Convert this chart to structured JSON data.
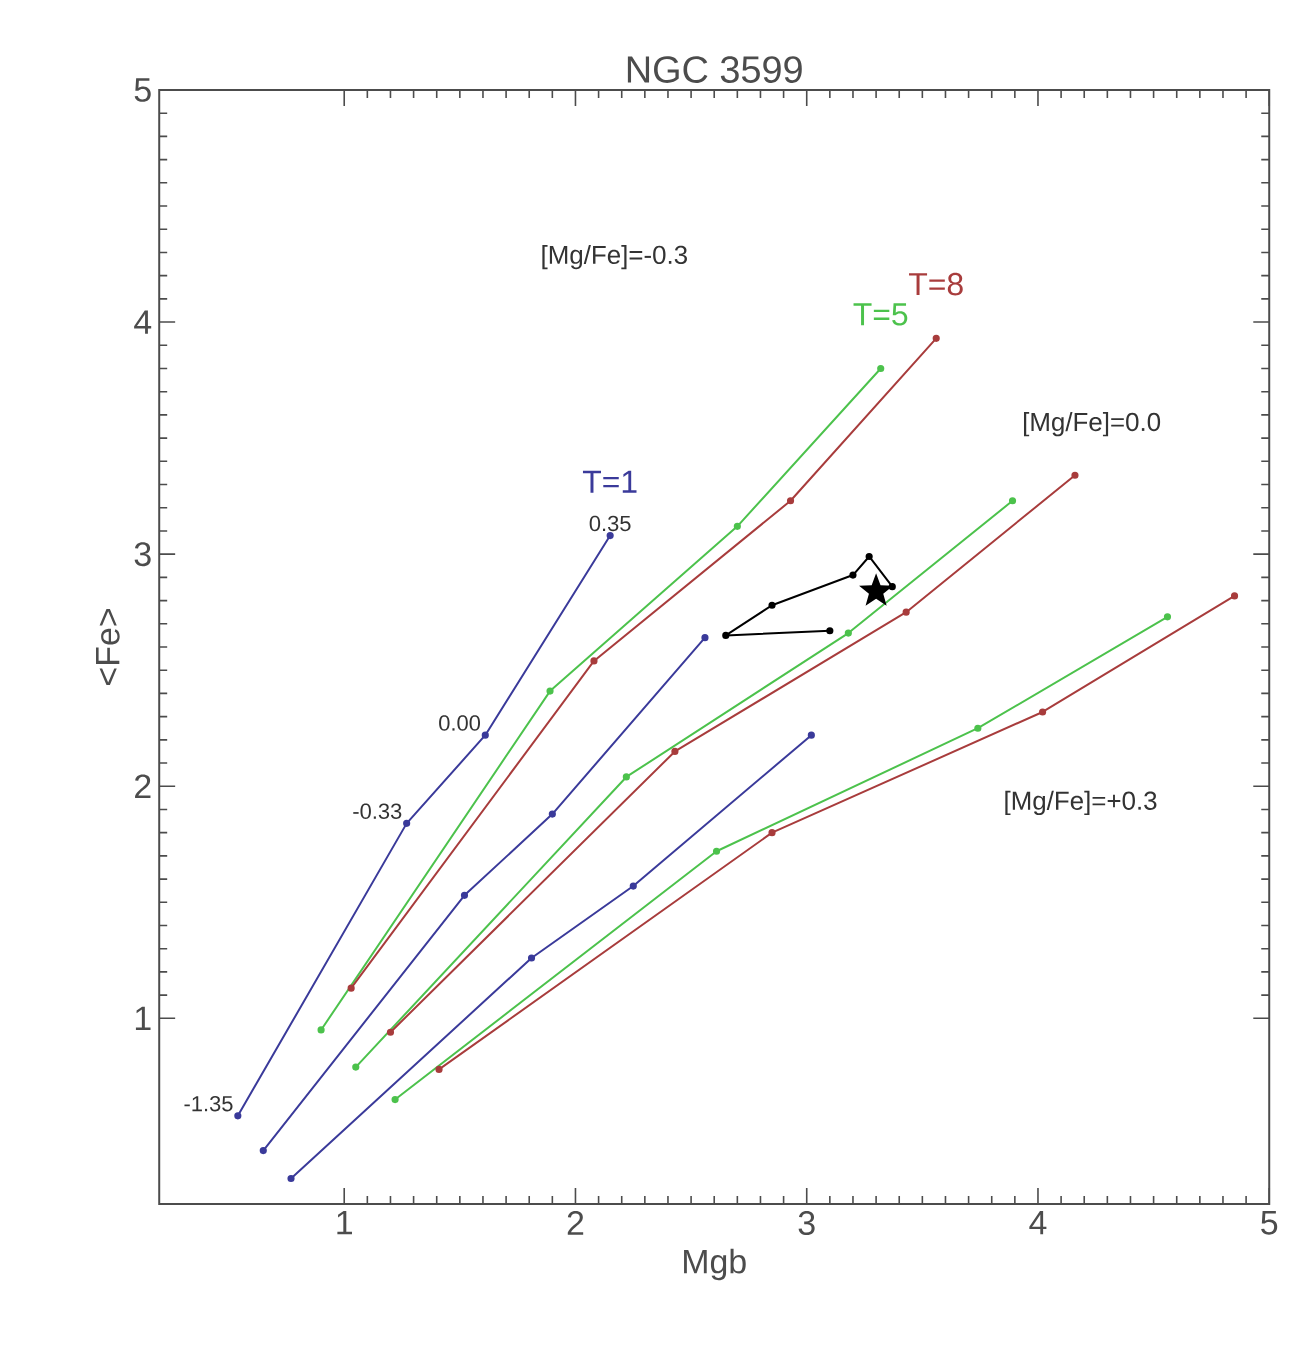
{
  "chart_data": {
    "type": "line",
    "title": "NGC 3599",
    "xlabel": "Mgb",
    "ylabel": "<Fe>",
    "xlim": [
      0.2,
      5
    ],
    "ylim": [
      0.2,
      5
    ],
    "xticks": [
      1,
      2,
      3,
      4,
      5
    ],
    "yticks": [
      1,
      2,
      3,
      4,
      5
    ],
    "marker": "circle",
    "line_style": "solid",
    "series": [
      {
        "name": "T=1",
        "color": "#3a3a9a",
        "x": [
          0.54,
          1.27,
          1.61,
          2.15,
          null,
          0.65,
          1.52,
          1.9,
          2.56,
          null,
          0.77,
          1.81,
          2.25,
          3.02
        ],
        "values": [
          0.58,
          1.84,
          2.22,
          3.08,
          null,
          0.43,
          1.53,
          1.88,
          2.64,
          null,
          0.31,
          1.26,
          1.57,
          2.22
        ]
      },
      {
        "name": "T=5",
        "color": "#4cc24c",
        "x": [
          0.9,
          1.89,
          2.7,
          3.32,
          null,
          1.05,
          2.22,
          3.18,
          3.89,
          null,
          1.22,
          2.61,
          3.74,
          4.56
        ],
        "values": [
          0.95,
          2.41,
          3.12,
          3.8,
          null,
          0.79,
          2.04,
          2.66,
          3.23,
          null,
          0.65,
          1.72,
          2.25,
          2.73
        ]
      },
      {
        "name": "T=8",
        "color": "#a83c3c",
        "x": [
          1.03,
          2.08,
          2.93,
          3.56,
          null,
          1.2,
          2.43,
          3.43,
          4.16,
          null,
          1.41,
          2.85,
          4.02,
          4.85
        ],
        "values": [
          1.13,
          2.54,
          3.23,
          3.93,
          null,
          0.94,
          2.15,
          2.75,
          3.34,
          null,
          0.78,
          1.8,
          2.32,
          2.82
        ]
      },
      {
        "color": "#000000",
        "x": [
          3.1,
          2.65,
          2.85,
          3.2,
          3.27,
          3.37
        ],
        "values": [
          2.67,
          2.65,
          2.78,
          2.91,
          2.99,
          2.86
        ]
      },
      {
        "type": "scatter",
        "marker": "star",
        "color": "#000000",
        "x": [
          3.3
        ],
        "values": [
          2.84
        ]
      }
    ],
    "annotations": [
      "[Mg/Fe]=-0.3",
      "[Mg/Fe]=0.0",
      "[Mg/Fe]=+0.3",
      {
        "text": "0.35",
        "x": 2.15,
        "y": 3.08
      },
      {
        "text": "0.00",
        "x": 1.61,
        "y": 2.22
      },
      {
        "text": "-0.33",
        "x": 1.27,
        "y": 1.84
      },
      {
        "text": "-1.35",
        "x": 0.54,
        "y": 0.58
      }
    ]
  }
}
